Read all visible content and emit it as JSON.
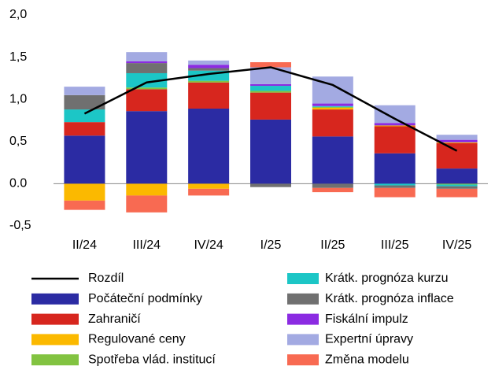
{
  "chart_data": {
    "type": "bar",
    "stacked": true,
    "categories": [
      "II/24",
      "III/24",
      "IV/24",
      "I/25",
      "II/25",
      "III/25",
      "IV/25"
    ],
    "ylim": [
      -0.5,
      2.0
    ],
    "yticks": [
      {
        "value": -0.5,
        "label": "-0,5"
      },
      {
        "value": 0,
        "label": "0.0"
      },
      {
        "value": 0.5,
        "label": "0,5"
      },
      {
        "value": 1.0,
        "label": "1,0"
      },
      {
        "value": 1.5,
        "label": "1,5"
      },
      {
        "value": 2.0,
        "label": "2,0"
      }
    ],
    "series": [
      {
        "name": "Rozdíl",
        "type": "line",
        "color": "#000000",
        "values": [
          0.83,
          1.2,
          1.3,
          1.38,
          1.17,
          0.77,
          0.39
        ]
      },
      {
        "name": "Počáteční podmínky",
        "color": "#2b2ba3",
        "values": [
          0.57,
          0.86,
          0.89,
          0.76,
          0.56,
          0.36,
          0.18
        ]
      },
      {
        "name": "Zahraničí",
        "color": "#d7261e",
        "values": [
          0.16,
          0.26,
          0.31,
          0.32,
          0.32,
          0.32,
          0.3
        ]
      },
      {
        "name": "Regulované ceny",
        "color": "#fbb900",
        "values": [
          -0.2,
          -0.14,
          -0.06,
          0,
          0.02,
          0.01,
          0.01
        ]
      },
      {
        "name": "Spotřeba vlád. institucí",
        "color": "#82c341",
        "values": [
          0,
          0.02,
          0.02,
          0.02,
          0.01,
          0,
          -0.01
        ]
      },
      {
        "name": "Krátk. prognóza kurzu",
        "color": "#1cc6c6",
        "values": [
          0.15,
          0.17,
          0.12,
          0.06,
          0.01,
          -0.02,
          -0.02
        ]
      },
      {
        "name": "Krátk. prognóza inflace",
        "color": "#707070",
        "values": [
          0.17,
          0.12,
          0.03,
          -0.04,
          -0.05,
          -0.03,
          -0.03
        ]
      },
      {
        "name": "Fiskální impulz",
        "color": "#8b2be2",
        "values": [
          0,
          0.02,
          0.04,
          0.02,
          0.03,
          0.03,
          0.03
        ]
      },
      {
        "name": "Expertní úpravy",
        "color": "#a3aae2",
        "values": [
          0.1,
          0.11,
          0.05,
          0.2,
          0.32,
          0.21,
          0.06
        ]
      },
      {
        "name": "Změna modelu",
        "color": "#f86a52",
        "values": [
          -0.11,
          -0.2,
          -0.08,
          0.06,
          -0.05,
          -0.11,
          -0.1
        ]
      }
    ]
  }
}
